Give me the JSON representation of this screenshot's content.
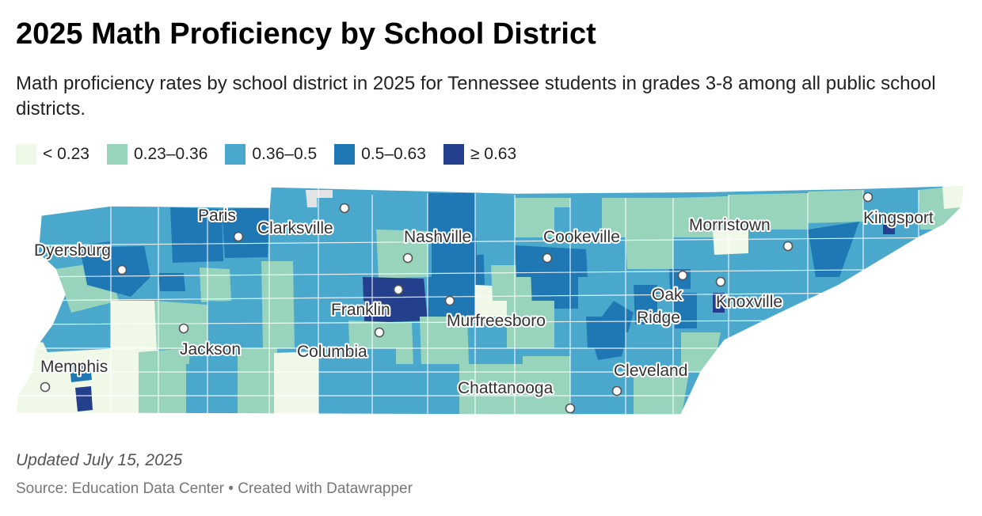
{
  "header": {
    "title": "2025 Math Proficiency by School District",
    "subtitle": "Math proficiency rates by school district in 2025 for Tennessee students in grades 3-8 among all public school districts."
  },
  "legend": [
    {
      "label": "< 0.23",
      "color": "#f0f9e8"
    },
    {
      "label": "0.23–0.36",
      "color": "#98d4bb"
    },
    {
      "label": "0.36–0.5",
      "color": "#4aa8cd"
    },
    {
      "label": "0.5–0.63",
      "color": "#1f78b4"
    },
    {
      "label": "≥ 0.63",
      "color": "#243f8c"
    }
  ],
  "colors": {
    "bin0": "#f0f9e8",
    "bin1": "#98d4bb",
    "bin2": "#4aa8cd",
    "bin3": "#1f78b4",
    "bin4": "#243f8c",
    "no_data": "#e3e3e3"
  },
  "cities": [
    {
      "name": "Dyersburg"
    },
    {
      "name": "Paris"
    },
    {
      "name": "Clarksville"
    },
    {
      "name": "Nashville"
    },
    {
      "name": "Cookeville"
    },
    {
      "name": "Morristown"
    },
    {
      "name": "Kingsport"
    },
    {
      "name": "Jackson"
    },
    {
      "name": "Franklin"
    },
    {
      "name": "Murfreesboro"
    },
    {
      "name": "Columbia"
    },
    {
      "name": "Oak"
    },
    {
      "name": "Ridge"
    },
    {
      "name": "Knoxville"
    },
    {
      "name": "Memphis"
    },
    {
      "name": "Cleveland"
    },
    {
      "name": "Chattanooga"
    }
  ],
  "footer": {
    "updated": "Updated July 15, 2025",
    "source": "Source: Education Data Center • Created with Datawrapper"
  }
}
